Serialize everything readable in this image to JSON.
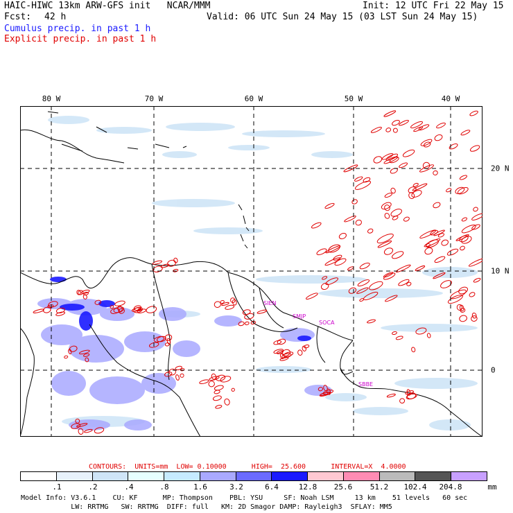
{
  "header": {
    "title": "HAIC-HIWC 13km ARW-GFS init   NCAR/MMM",
    "init": "Init: 12 UTC Fri 22 May 15",
    "fcst_label": "Fcst:",
    "fcst_value": "42 h",
    "valid": "Valid: 06 UTC Sun 24 May 15 (03 LST Sun 24 May 15)",
    "cumulus": "Cumulus precip. in past 1 h",
    "explicit": "Explicit precip. in past 1 h"
  },
  "axes": {
    "longitudes": [
      "80 W",
      "70 W",
      "60 W",
      "50 W",
      "40 W"
    ],
    "latitudes": [
      "20 N",
      "10 N",
      "0"
    ]
  },
  "stations": [
    "SIEN",
    "SMJP",
    "SOCA",
    "SBBE"
  ],
  "contours_line": "CONTOURS:  UNITS=mm  LOW= 0.10000      HIGH=  25.600      INTERVAL=X  4.0000",
  "legend": {
    "labels": [
      ".1",
      ".2",
      ".4",
      ".8",
      "1.6",
      "3.2",
      "6.4",
      "12.8",
      "25.6",
      "51.2",
      "102.4",
      "204.8"
    ],
    "unit": "mm",
    "colors": [
      "#ffffff",
      "#e8f2fb",
      "#cfe5f7",
      "#e6ffff",
      "#c6ebff",
      "#a9a9ff",
      "#6b6bff",
      "#1a1aff",
      "#ffc8d2",
      "#ff8cb4",
      "#bbbbbb",
      "#555555",
      "#c8a0ff"
    ]
  },
  "model_info": {
    "line1": "Model Info: V3.6.1    CU: KF      MP: Thompson    PBL: YSU     SF: Noah LSM     13 km    51 levels   60 sec",
    "line2": "            LW: RRTMG   SW: RRTMG  DIFF: full   KM: 2D Smagor DAMP: Rayleigh3  SFLAY: MM5"
  }
}
